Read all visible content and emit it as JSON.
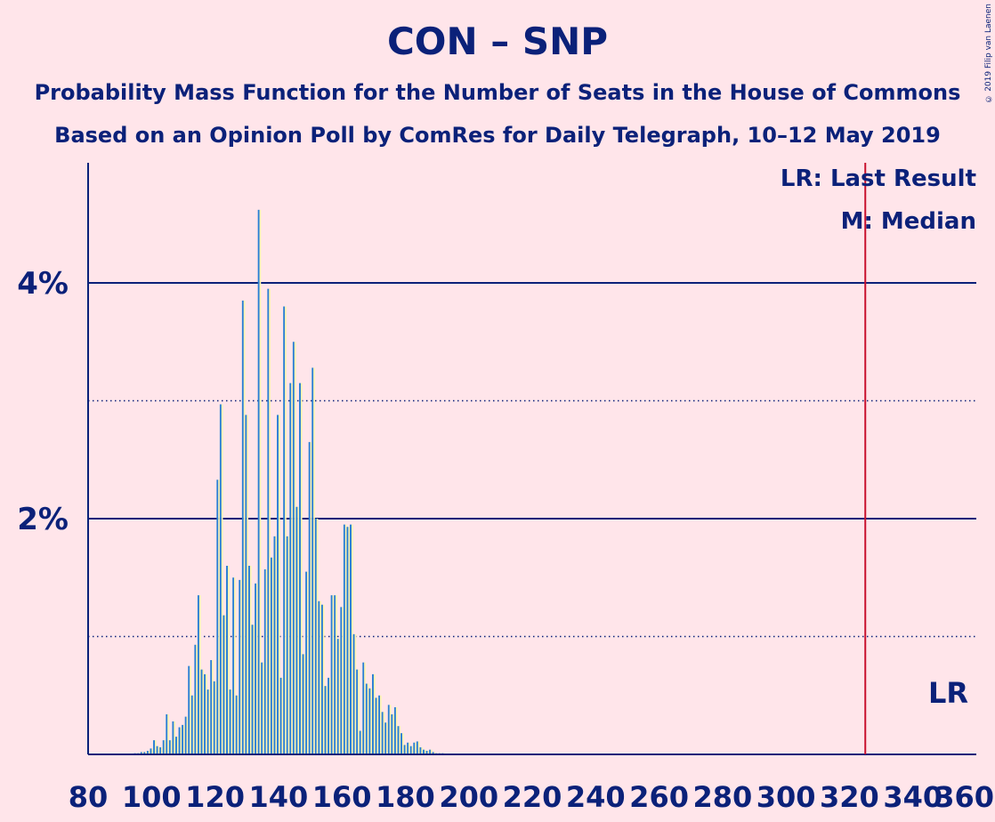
{
  "title": "CON – SNP",
  "subtitle_1": "Probability Mass Function for the Number of Seats in the House of Commons",
  "subtitle_2": "Based on an Opinion Poll by ComRes for Daily Telegraph, 10–12 May 2019",
  "copyright": "© 2019 Filip van Laenen",
  "legend": {
    "last_result": "LR: Last Result",
    "median": "M: Median"
  },
  "lr_marker": "LR",
  "colors": {
    "background": "#ffe5ea",
    "text": "#0b2179",
    "bar_blue": "#2a7fd4",
    "bar_yellow": "#fff5b0",
    "last_result_line": "#c8102e"
  },
  "chart_data": {
    "type": "bar",
    "xlabel": "",
    "ylabel": "",
    "xlim": [
      80,
      360
    ],
    "ylim": [
      0,
      5
    ],
    "x_ticks": [
      80,
      100,
      120,
      140,
      160,
      180,
      200,
      220,
      240,
      260,
      280,
      300,
      320,
      340,
      360
    ],
    "y_ticks_solid": [
      2,
      4
    ],
    "y_tick_labels": [
      "2%",
      "4%"
    ],
    "y_ticks_dotted": [
      1,
      3
    ],
    "last_result": 325,
    "series": [
      {
        "values_percent": [
          [
            95,
            0.01
          ],
          [
            96,
            0.01
          ],
          [
            97,
            0.02
          ],
          [
            98,
            0.02
          ],
          [
            99,
            0.03
          ],
          [
            100,
            0.05
          ],
          [
            101,
            0.12
          ],
          [
            102,
            0.07
          ],
          [
            103,
            0.06
          ],
          [
            104,
            0.12
          ],
          [
            105,
            0.34
          ],
          [
            106,
            0.12
          ],
          [
            107,
            0.28
          ],
          [
            108,
            0.15
          ],
          [
            109,
            0.23
          ],
          [
            110,
            0.25
          ],
          [
            111,
            0.32
          ],
          [
            112,
            0.75
          ],
          [
            113,
            0.5
          ],
          [
            114,
            0.93
          ],
          [
            115,
            1.35
          ],
          [
            116,
            0.72
          ],
          [
            117,
            0.68
          ],
          [
            118,
            0.55
          ],
          [
            119,
            0.8
          ],
          [
            120,
            0.62
          ],
          [
            121,
            2.33
          ],
          [
            122,
            2.97
          ],
          [
            123,
            1.18
          ],
          [
            124,
            1.6
          ],
          [
            125,
            0.55
          ],
          [
            126,
            1.5
          ],
          [
            127,
            0.5
          ],
          [
            128,
            1.48
          ],
          [
            129,
            3.85
          ],
          [
            130,
            2.88
          ],
          [
            131,
            1.6
          ],
          [
            132,
            1.1
          ],
          [
            133,
            1.45
          ],
          [
            134,
            4.62
          ],
          [
            135,
            0.78
          ],
          [
            136,
            1.57
          ],
          [
            137,
            3.95
          ],
          [
            138,
            1.67
          ],
          [
            139,
            1.85
          ],
          [
            140,
            2.88
          ],
          [
            141,
            0.65
          ],
          [
            142,
            3.8
          ],
          [
            143,
            1.85
          ],
          [
            144,
            3.15
          ],
          [
            145,
            3.5
          ],
          [
            146,
            2.1
          ],
          [
            147,
            3.15
          ],
          [
            148,
            0.85
          ],
          [
            149,
            1.55
          ],
          [
            150,
            2.65
          ],
          [
            151,
            3.28
          ],
          [
            152,
            2.0
          ],
          [
            153,
            1.3
          ],
          [
            154,
            1.27
          ],
          [
            155,
            0.58
          ],
          [
            156,
            0.65
          ],
          [
            157,
            1.35
          ],
          [
            158,
            1.35
          ],
          [
            159,
            0.98
          ],
          [
            160,
            1.25
          ],
          [
            161,
            1.95
          ],
          [
            162,
            1.93
          ],
          [
            163,
            1.95
          ],
          [
            164,
            1.02
          ],
          [
            165,
            0.72
          ],
          [
            166,
            0.2
          ],
          [
            167,
            0.78
          ],
          [
            168,
            0.6
          ],
          [
            169,
            0.56
          ],
          [
            170,
            0.68
          ],
          [
            171,
            0.48
          ],
          [
            172,
            0.5
          ],
          [
            173,
            0.36
          ],
          [
            174,
            0.27
          ],
          [
            175,
            0.42
          ],
          [
            176,
            0.34
          ],
          [
            177,
            0.4
          ],
          [
            178,
            0.24
          ],
          [
            179,
            0.18
          ],
          [
            180,
            0.08
          ],
          [
            181,
            0.1
          ],
          [
            182,
            0.07
          ],
          [
            183,
            0.1
          ],
          [
            184,
            0.11
          ],
          [
            185,
            0.06
          ],
          [
            186,
            0.04
          ],
          [
            187,
            0.03
          ],
          [
            188,
            0.04
          ],
          [
            189,
            0.02
          ],
          [
            190,
            0.01
          ],
          [
            191,
            0.01
          ],
          [
            192,
            0.01
          ]
        ]
      }
    ]
  }
}
